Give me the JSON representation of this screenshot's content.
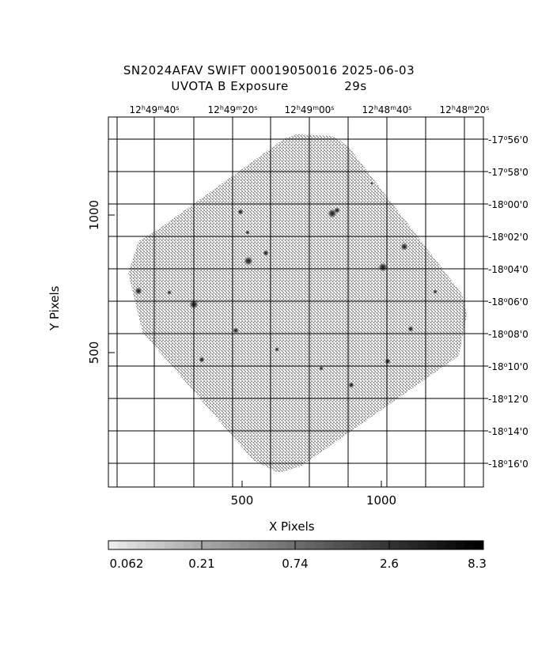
{
  "title": {
    "line1": "SN2024AFAV SWIFT 00019050016 2025-06-03",
    "line2_left": "UVOTA B Exposure",
    "line2_right": "29s"
  },
  "axes": {
    "xlabel": "X Pixels",
    "ylabel": "Y Pixels",
    "x_ticks": [
      {
        "label": "500",
        "value": 500
      },
      {
        "label": "1000",
        "value": 1000
      }
    ],
    "y_ticks": [
      {
        "label": "500",
        "value": 500
      },
      {
        "label": "1000",
        "value": 1000
      }
    ],
    "ra_ticks": [
      {
        "h": "12",
        "m": "49",
        "s": "40"
      },
      {
        "h": "12",
        "m": "49",
        "s": "20"
      },
      {
        "h": "12",
        "m": "49",
        "s": "00"
      },
      {
        "h": "12",
        "m": "48",
        "s": "40"
      },
      {
        "h": "12",
        "m": "48",
        "s": "20"
      }
    ],
    "dec_ticks": [
      {
        "d": "-17",
        "m": "56",
        "s": "0"
      },
      {
        "d": "-17",
        "m": "58",
        "s": "0"
      },
      {
        "d": "-18",
        "m": "00",
        "s": "0"
      },
      {
        "d": "-18",
        "m": "02",
        "s": "0"
      },
      {
        "d": "-18",
        "m": "04",
        "s": "0"
      },
      {
        "d": "-18",
        "m": "06",
        "s": "0"
      },
      {
        "d": "-18",
        "m": "08",
        "s": "0"
      },
      {
        "d": "-18",
        "m": "10",
        "s": "0"
      },
      {
        "d": "-18",
        "m": "12",
        "s": "0"
      },
      {
        "d": "-18",
        "m": "14",
        "s": "0"
      },
      {
        "d": "-18",
        "m": "16",
        "s": "0"
      }
    ]
  },
  "colorbar": {
    "labels": [
      "0.062",
      "0.21",
      "0.74",
      "2.6",
      "8.3"
    ]
  },
  "colors": {
    "frame": "#000000",
    "image_fill": "#9a9a9a",
    "background": "#ffffff"
  }
}
